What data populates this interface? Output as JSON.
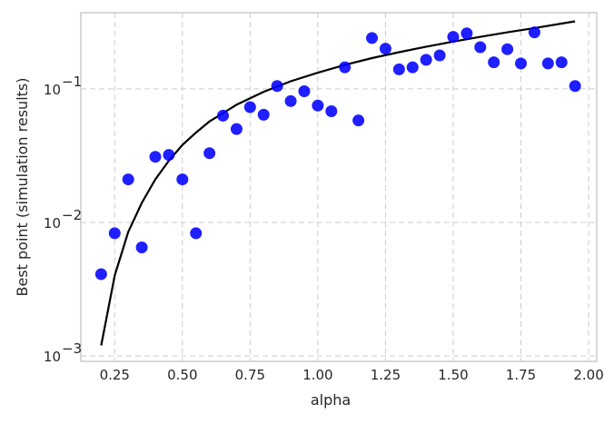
{
  "chart_data": {
    "type": "scatter",
    "title": "",
    "xlabel": "alpha",
    "ylabel": "Best point (simulation results)",
    "xlim": [
      0.125,
      2.03
    ],
    "ylim_log10": [
      -3.04,
      -0.43
    ],
    "yscale": "log",
    "grid": true,
    "x_ticks": [
      0.25,
      0.5,
      0.75,
      1.0,
      1.25,
      1.5,
      1.75,
      2.0
    ],
    "x_tick_labels": [
      "0.25",
      "0.50",
      "0.75",
      "1.00",
      "1.25",
      "1.50",
      "1.75",
      "2.00"
    ],
    "y_ticks": [
      0.001,
      0.01,
      0.1
    ],
    "y_tick_labels": [
      {
        "base": "10",
        "exp": "−3"
      },
      {
        "base": "10",
        "exp": "−2"
      },
      {
        "base": "10",
        "exp": "−1"
      }
    ],
    "series": [
      {
        "type": "scatter",
        "color": "#0000ff",
        "x": [
          0.2,
          0.25,
          0.3,
          0.35,
          0.4,
          0.45,
          0.5,
          0.55,
          0.6,
          0.65,
          0.7,
          0.75,
          0.8,
          0.85,
          0.9,
          0.95,
          1.0,
          1.05,
          1.1,
          1.15,
          1.2,
          1.25,
          1.3,
          1.35,
          1.4,
          1.45,
          1.5,
          1.55,
          1.6,
          1.65,
          1.7,
          1.75,
          1.8,
          1.85,
          1.9,
          1.95
        ],
        "y": [
          0.0041,
          0.0083,
          0.021,
          0.0065,
          0.031,
          0.032,
          0.021,
          0.0083,
          0.033,
          0.063,
          0.05,
          0.073,
          0.064,
          0.105,
          0.081,
          0.096,
          0.075,
          0.068,
          0.145,
          0.058,
          0.24,
          0.2,
          0.14,
          0.145,
          0.165,
          0.178,
          0.245,
          0.26,
          0.205,
          0.158,
          0.198,
          0.155,
          0.265,
          0.155,
          0.158,
          0.105
        ]
      },
      {
        "type": "line",
        "color": "#000000",
        "x": [
          0.2,
          0.25,
          0.3,
          0.35,
          0.4,
          0.45,
          0.5,
          0.55,
          0.6,
          0.7,
          0.8,
          0.9,
          1.0,
          1.1,
          1.2,
          1.3,
          1.4,
          1.5,
          1.6,
          1.7,
          1.8,
          1.95
        ],
        "y": [
          0.0012,
          0.004,
          0.0085,
          0.014,
          0.021,
          0.029,
          0.038,
          0.047,
          0.057,
          0.076,
          0.095,
          0.114,
          0.132,
          0.151,
          0.17,
          0.188,
          0.207,
          0.226,
          0.245,
          0.265,
          0.285,
          0.32
        ]
      }
    ]
  }
}
